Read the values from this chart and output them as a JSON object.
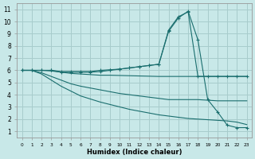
{
  "xlabel": "Humidex (Indice chaleur)",
  "bg_color": "#c8e8e8",
  "grid_color": "#a8cccc",
  "line_color": "#1a6e6e",
  "xlim": [
    -0.5,
    23.5
  ],
  "ylim": [
    0.5,
    11.5
  ],
  "xticks": [
    0,
    1,
    2,
    3,
    4,
    5,
    6,
    7,
    8,
    9,
    10,
    11,
    12,
    13,
    14,
    15,
    16,
    17,
    18,
    19,
    20,
    21,
    22,
    23
  ],
  "yticks": [
    1,
    2,
    3,
    4,
    5,
    6,
    7,
    8,
    9,
    10,
    11
  ],
  "lines": [
    {
      "x": [
        0,
        1,
        2,
        3,
        4,
        5,
        6,
        7,
        8,
        9,
        10,
        11,
        12,
        13,
        14,
        15,
        16,
        17,
        18,
        19,
        20,
        21,
        22,
        23
      ],
      "y": [
        6.0,
        6.0,
        6.0,
        6.0,
        5.9,
        5.9,
        5.9,
        5.9,
        6.0,
        6.05,
        6.1,
        6.2,
        6.3,
        6.4,
        6.5,
        9.3,
        10.4,
        10.8,
        5.5,
        5.5,
        5.5,
        5.5,
        5.5,
        5.5
      ],
      "marker": true
    },
    {
      "x": [
        0,
        1,
        2,
        3,
        4,
        5,
        6,
        7,
        8,
        9,
        10,
        11,
        12,
        13,
        14,
        15,
        16,
        17,
        18,
        19,
        20,
        21,
        22,
        23
      ],
      "y": [
        6.0,
        6.0,
        6.0,
        6.0,
        5.85,
        5.85,
        5.85,
        5.85,
        5.9,
        6.0,
        6.1,
        6.2,
        6.3,
        6.4,
        6.5,
        9.2,
        10.3,
        10.85,
        8.5,
        3.6,
        2.6,
        1.5,
        1.3,
        1.3
      ],
      "marker": true
    },
    {
      "x": [
        0,
        1,
        2,
        3,
        4,
        5,
        6,
        7,
        8,
        9,
        10,
        11,
        12,
        13,
        14,
        15,
        16,
        17,
        18,
        19,
        20,
        21,
        22,
        23
      ],
      "y": [
        6.0,
        6.0,
        6.0,
        5.95,
        5.85,
        5.75,
        5.7,
        5.65,
        5.6,
        5.6,
        5.58,
        5.56,
        5.54,
        5.52,
        5.5,
        5.5,
        5.5,
        5.5,
        5.5,
        5.5,
        5.5,
        5.5,
        5.5,
        5.5
      ],
      "marker": false
    },
    {
      "x": [
        0,
        1,
        2,
        3,
        4,
        5,
        6,
        7,
        8,
        9,
        10,
        11,
        12,
        13,
        14,
        15,
        16,
        17,
        18,
        19,
        20,
        21,
        22,
        23
      ],
      "y": [
        6.0,
        6.0,
        5.8,
        5.5,
        5.2,
        4.9,
        4.7,
        4.55,
        4.4,
        4.25,
        4.1,
        4.0,
        3.9,
        3.8,
        3.7,
        3.6,
        3.6,
        3.6,
        3.6,
        3.55,
        3.5,
        3.5,
        3.5,
        3.5
      ],
      "marker": false
    },
    {
      "x": [
        0,
        1,
        2,
        3,
        4,
        5,
        6,
        7,
        8,
        9,
        10,
        11,
        12,
        13,
        14,
        15,
        16,
        17,
        18,
        19,
        20,
        21,
        22,
        23
      ],
      "y": [
        6.0,
        6.0,
        5.7,
        5.2,
        4.7,
        4.3,
        3.9,
        3.65,
        3.4,
        3.2,
        3.0,
        2.8,
        2.65,
        2.5,
        2.35,
        2.25,
        2.15,
        2.05,
        2.0,
        1.95,
        1.9,
        1.85,
        1.75,
        1.55
      ],
      "marker": false
    }
  ]
}
